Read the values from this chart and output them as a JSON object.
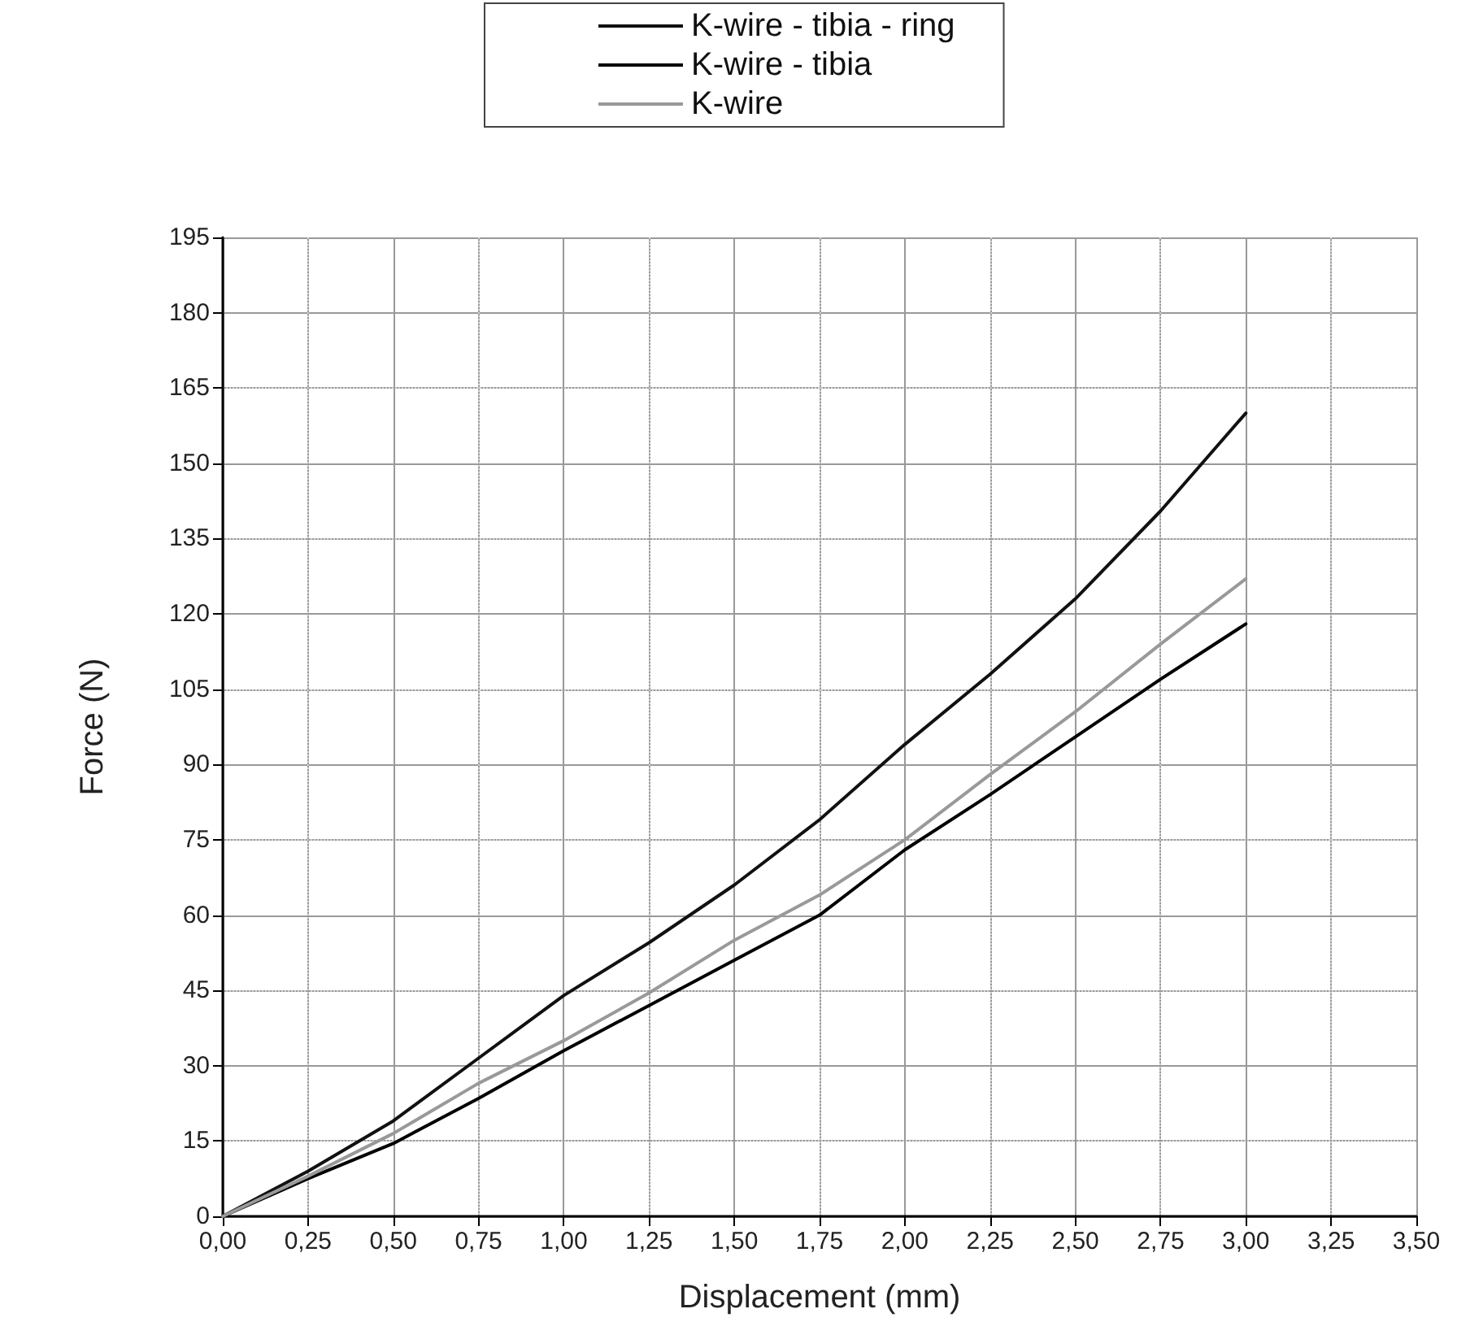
{
  "chart_data": {
    "type": "line",
    "xlabel": "Displacement (mm)",
    "ylabel": "Force (N)",
    "x": [
      0,
      0.25,
      0.5,
      0.75,
      1.0,
      1.25,
      1.5,
      1.75,
      2.0,
      2.25,
      2.5,
      2.75,
      3.0
    ],
    "series": [
      {
        "name": "K-wire - tibia - ring",
        "color": "#111111",
        "values": [
          0,
          9,
          19,
          31.5,
          44,
          54.5,
          66,
          79,
          94,
          108,
          123,
          140.5,
          160
        ]
      },
      {
        "name": "K-wire - tibia",
        "color": "#000000",
        "values": [
          0,
          7.5,
          14.5,
          23.5,
          33,
          42,
          51,
          60,
          73,
          84,
          95.5,
          107,
          118
        ]
      },
      {
        "name": "K-wire",
        "color": "#999999",
        "values": [
          0,
          8,
          16.5,
          26.5,
          35,
          44.5,
          55,
          64,
          75,
          88,
          100.5,
          114,
          127
        ]
      }
    ],
    "xlim": [
      0,
      3.5
    ],
    "xticks": [
      {
        "value": 0,
        "label": "0,00"
      },
      {
        "value": 0.25,
        "label": "0,25"
      },
      {
        "value": 0.5,
        "label": "0,50"
      },
      {
        "value": 0.75,
        "label": "0,75"
      },
      {
        "value": 1,
        "label": "1,00"
      },
      {
        "value": 1.25,
        "label": "1,25"
      },
      {
        "value": 1.5,
        "label": "1,50"
      },
      {
        "value": 1.75,
        "label": "1,75"
      },
      {
        "value": 2,
        "label": "2,00"
      },
      {
        "value": 2.25,
        "label": "2,25"
      },
      {
        "value": 2.5,
        "label": "2,50"
      },
      {
        "value": 2.75,
        "label": "2,75"
      },
      {
        "value": 3,
        "label": "3,00"
      },
      {
        "value": 3.25,
        "label": "3,25"
      },
      {
        "value": 3.5,
        "label": "3,50"
      }
    ],
    "ylim": [
      0,
      195
    ],
    "yticks": [
      0,
      15,
      30,
      45,
      60,
      75,
      90,
      105,
      120,
      135,
      150,
      165,
      180,
      195
    ],
    "grid": true,
    "legend": "top",
    "marker": "none",
    "line_style": "solid"
  }
}
